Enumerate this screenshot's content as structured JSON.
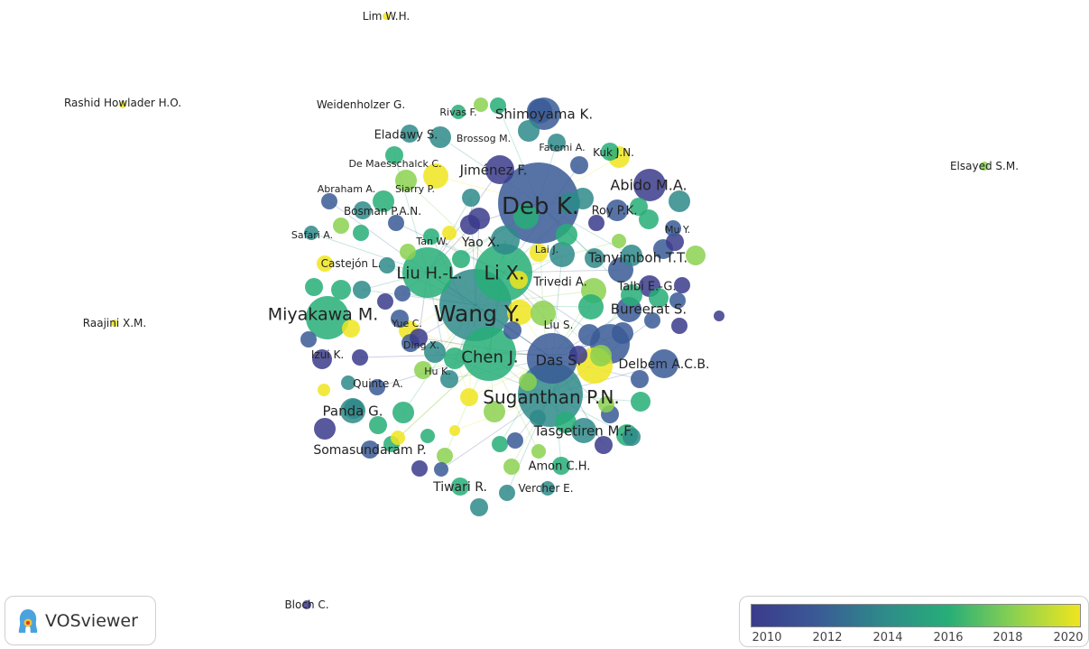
{
  "brand": {
    "name": "VOSviewer"
  },
  "legend": {
    "ticks": [
      "2010",
      "2012",
      "2014",
      "2016",
      "2018",
      "2020"
    ],
    "colors": [
      "#3b3b8c",
      "#3a5a96",
      "#2e8a8a",
      "#27ae78",
      "#8cd150",
      "#f0e51e"
    ]
  },
  "labels": [
    {
      "text": "Lim W.H."
    },
    {
      "text": "Rashid Howlader H.O."
    },
    {
      "text": "Weidenholzer G."
    },
    {
      "text": "Rivas F."
    },
    {
      "text": "Shimoyama K."
    },
    {
      "text": "Eladawy S."
    },
    {
      "text": "Brossog M."
    },
    {
      "text": "Fatemi A."
    },
    {
      "text": "Kuk J.N."
    },
    {
      "text": "Elsayed S.M."
    },
    {
      "text": "De Maesschalck C."
    },
    {
      "text": "Jiménez F."
    },
    {
      "text": "Abido M.A."
    },
    {
      "text": "Abraham A."
    },
    {
      "text": "Siarry P."
    },
    {
      "text": "Deb K."
    },
    {
      "text": "Roy P.K."
    },
    {
      "text": "Bosman P.A.N."
    },
    {
      "text": "Mu Y."
    },
    {
      "text": "Safari A."
    },
    {
      "text": "Tan W."
    },
    {
      "text": "Yao X."
    },
    {
      "text": "Lai J."
    },
    {
      "text": "Tanyimboh T.T."
    },
    {
      "text": "Castejón L."
    },
    {
      "text": "Liu H.-L."
    },
    {
      "text": "Li X."
    },
    {
      "text": "Trivedi A."
    },
    {
      "text": "Talbi E.-G."
    },
    {
      "text": "Miyakawa M."
    },
    {
      "text": "Wang Y."
    },
    {
      "text": "Bureerat S."
    },
    {
      "text": "Raajini X.M."
    },
    {
      "text": "Yue C."
    },
    {
      "text": "Liu S."
    },
    {
      "text": "Ding X."
    },
    {
      "text": "Izui K."
    },
    {
      "text": "Chen J."
    },
    {
      "text": "Das S."
    },
    {
      "text": "Delbem A.C.B."
    },
    {
      "text": "Hu K."
    },
    {
      "text": "Quinte A."
    },
    {
      "text": "Suganthan P.N."
    },
    {
      "text": "Panda G."
    },
    {
      "text": "Tasgetiren M.F."
    },
    {
      "text": "Somasundaram P."
    },
    {
      "text": "Amon C.H."
    },
    {
      "text": "Tiwari R."
    },
    {
      "text": "Vercher E."
    },
    {
      "text": "Bloch C."
    }
  ]
}
